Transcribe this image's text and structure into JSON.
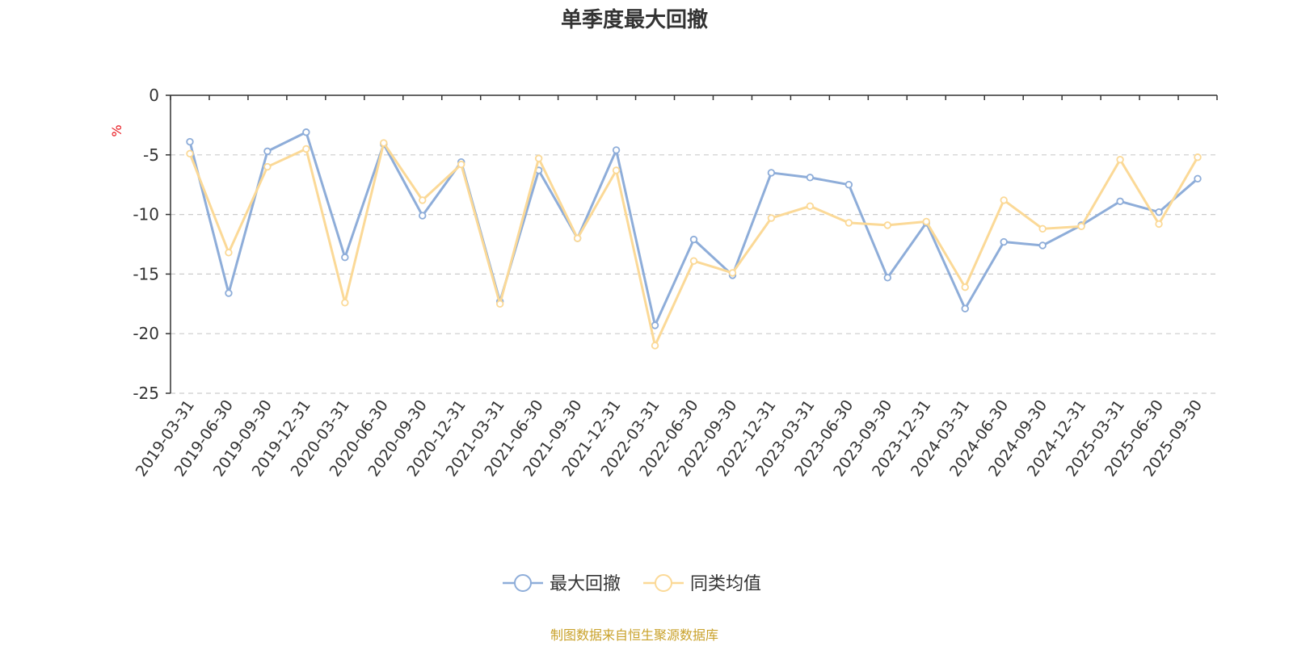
{
  "chart_data": {
    "type": "line",
    "title": "单季度最大回撤",
    "unit_label": "%",
    "ylim": [
      -25,
      0
    ],
    "y_ticks": [
      "0",
      "-5",
      "-10",
      "-15",
      "-20",
      "-25"
    ],
    "y_tick_values": [
      0,
      -5,
      -10,
      -15,
      -20,
      -25
    ],
    "grid": "horizontal dashed",
    "legend_position": "bottom-center",
    "categories": [
      "2019-03-31",
      "2019-06-30",
      "2019-09-30",
      "2019-12-31",
      "2020-03-31",
      "2020-06-30",
      "2020-09-30",
      "2020-12-31",
      "2021-03-31",
      "2021-06-30",
      "2021-09-30",
      "2021-12-31",
      "2022-03-31",
      "2022-06-30",
      "2022-09-30",
      "2022-12-31",
      "2023-03-31",
      "2023-06-30",
      "2023-09-30",
      "2023-12-31",
      "2024-03-31",
      "2024-06-30",
      "2024-09-30",
      "2024-12-31",
      "2025-03-31",
      "2025-06-30",
      "2025-09-30"
    ],
    "series": [
      {
        "name": "最大回撤",
        "color": "#8eadd9",
        "values": [
          -3.9,
          -16.6,
          -4.7,
          -3.1,
          -13.6,
          -4.1,
          -10.1,
          -5.6,
          -17.3,
          -6.3,
          -12.0,
          -4.6,
          -19.3,
          -12.1,
          -15.1,
          -6.5,
          -6.9,
          -7.5,
          -15.3,
          -10.7,
          -17.9,
          -12.3,
          -12.6,
          -10.9,
          -8.9,
          -9.8,
          -7.0
        ]
      },
      {
        "name": "同类均值",
        "color": "#fbd997",
        "values": [
          -4.9,
          -13.2,
          -6.0,
          -4.5,
          -17.4,
          -4.0,
          -8.8,
          -5.8,
          -17.5,
          -5.3,
          -12.0,
          -6.3,
          -21.0,
          -13.9,
          -14.9,
          -10.3,
          -9.3,
          -10.7,
          -10.9,
          -10.6,
          -16.1,
          -8.8,
          -11.2,
          -11.0,
          -5.4,
          -10.8,
          -5.2
        ]
      }
    ]
  },
  "source_note": "制图数据来自恒生聚源数据库"
}
